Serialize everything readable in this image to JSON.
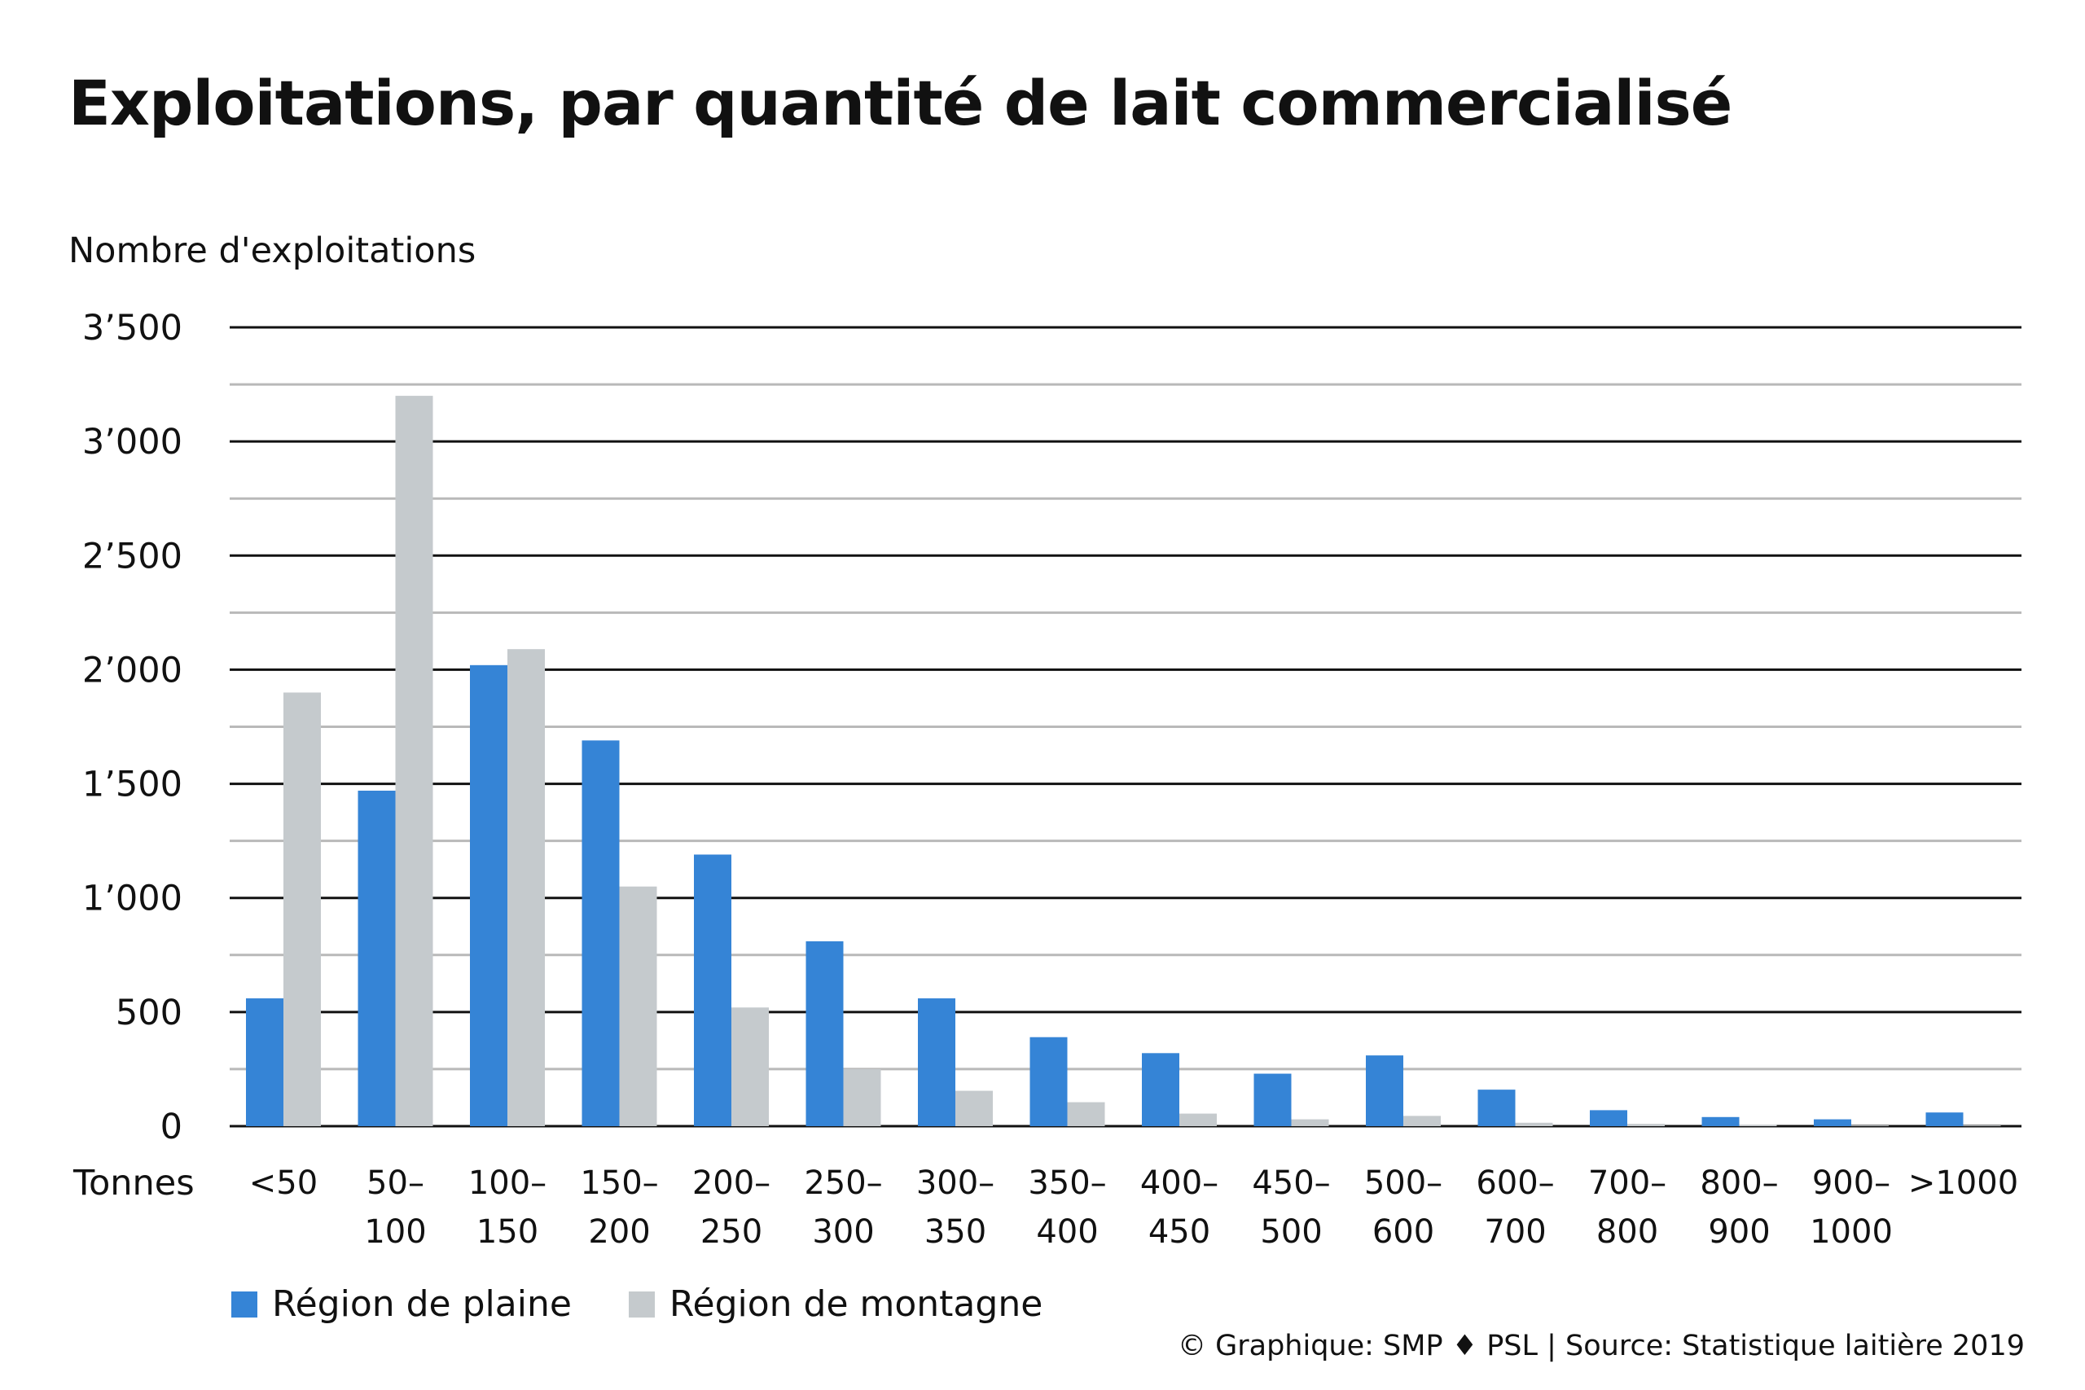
{
  "title": "Exploitations, par quantité de lait commercialisé",
  "source": "© Graphique: SMP ♦ PSL | Source: Statistique laitière 2019",
  "chart_data": {
    "type": "bar",
    "ylabel": "Nombre d'exploitations",
    "xlabel": "Tonnes",
    "ylim": [
      0,
      3500
    ],
    "yticks": [
      0,
      500,
      1000,
      1500,
      2000,
      2500,
      3000,
      3500
    ],
    "ytick_labels": [
      "0",
      "500",
      "1’000",
      "1’500",
      "2’000",
      "2’500",
      "3’000",
      "3’500"
    ],
    "grid": true,
    "legend_position": "bottom-left",
    "categories": [
      [
        "<50"
      ],
      [
        "50–",
        "100"
      ],
      [
        "100–",
        "150"
      ],
      [
        "150–",
        "200"
      ],
      [
        "200–",
        "250"
      ],
      [
        "250–",
        "300"
      ],
      [
        "300–",
        "350"
      ],
      [
        "350–",
        "400"
      ],
      [
        "400–",
        "450"
      ],
      [
        "450–",
        "500"
      ],
      [
        "500–",
        "600"
      ],
      [
        "600–",
        "700"
      ],
      [
        "700–",
        "800"
      ],
      [
        "800–",
        "900"
      ],
      [
        "900–",
        "1000"
      ],
      [
        ">1000"
      ]
    ],
    "series": [
      {
        "name": "Région de plaine",
        "color": "#3584d6",
        "values": [
          560,
          1470,
          2020,
          1690,
          1190,
          810,
          560,
          390,
          320,
          230,
          310,
          160,
          70,
          40,
          30,
          60
        ]
      },
      {
        "name": "Région de montagne",
        "color": "#c5cacd",
        "values": [
          1900,
          3200,
          2090,
          1050,
          520,
          250,
          155,
          105,
          55,
          30,
          45,
          15,
          10,
          5,
          3,
          3
        ]
      }
    ]
  }
}
